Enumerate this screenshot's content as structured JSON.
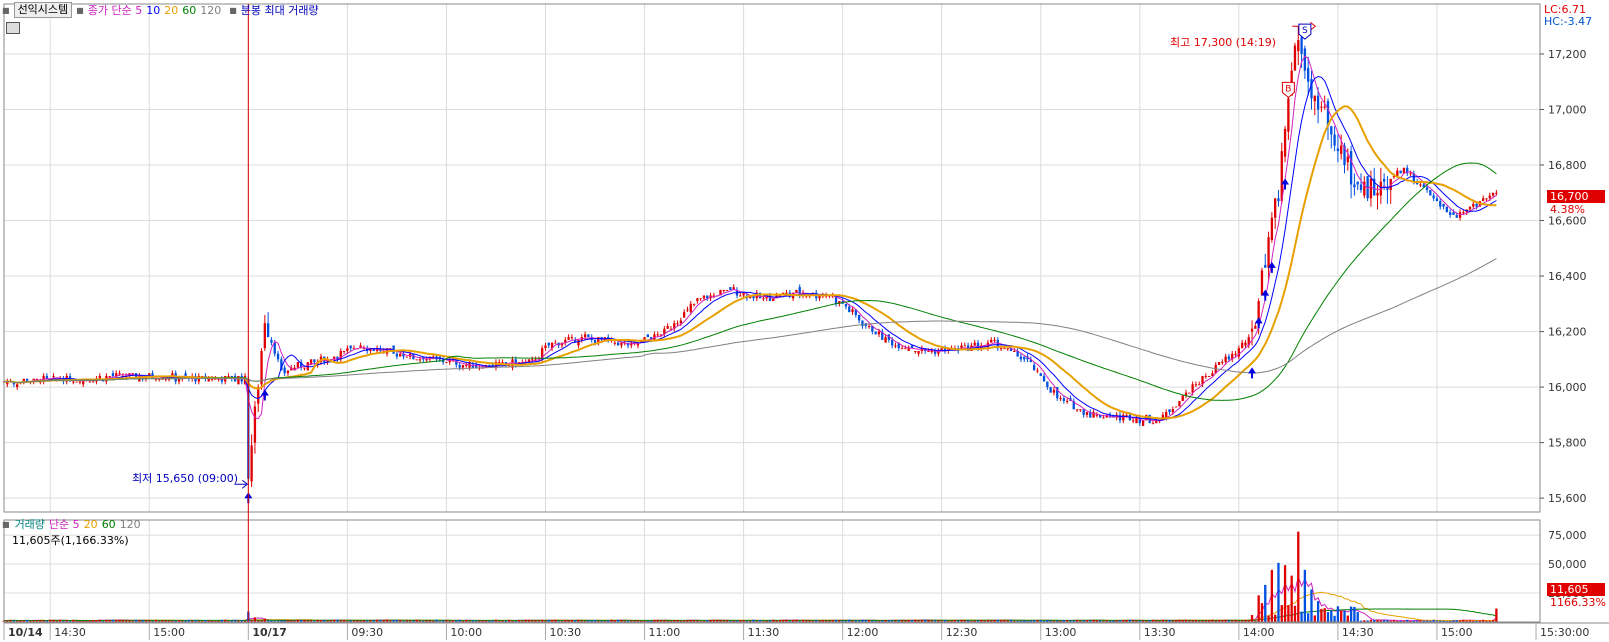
{
  "header": {
    "system_button": "선익시스템",
    "price_legend": [
      {
        "text": "종가 단순 5",
        "color": "#d020c0"
      },
      {
        "text": "10",
        "color": "#0000ff"
      },
      {
        "text": "20",
        "color": "#e8a000"
      },
      {
        "text": "60",
        "color": "#008000"
      },
      {
        "text": "120",
        "color": "#808080"
      }
    ],
    "overlay_label": "분봉 최대 거래량"
  },
  "corner": {
    "lc": "LC:6.71",
    "hc": "HC:-3.47"
  },
  "last_price": {
    "value": "16,700",
    "change": "4.38%"
  },
  "annotations": {
    "high": "최고 17,300 (14:19)",
    "low": "최저 15,650 (09:00)",
    "buy_marker": "B",
    "sell_marker": "S"
  },
  "volume_panel": {
    "legend": [
      {
        "text": "거래량",
        "color": "#008080"
      },
      {
        "text": "단순 5",
        "color": "#d020c0"
      },
      {
        "text": "20",
        "color": "#e8a000"
      },
      {
        "text": "60",
        "color": "#008000"
      },
      {
        "text": "120",
        "color": "#808080"
      }
    ],
    "current": "11,605주(1,166.33%)",
    "last_tag": "11,605",
    "last_pct": "1166.33%"
  },
  "chart_data": {
    "type": "candlestick",
    "price_axis": {
      "ticks": [
        "17,200",
        "17,000",
        "16,800",
        "16,600",
        "16,400",
        "16,200",
        "16,000",
        "15,800",
        "15,600"
      ],
      "values": [
        17200,
        17000,
        16800,
        16600,
        16400,
        16200,
        16000,
        15800,
        15600
      ],
      "range": [
        15550,
        17380
      ]
    },
    "volume_axis": {
      "ticks": [
        "75,000",
        "50,000",
        "25,000"
      ],
      "values": [
        75000,
        50000,
        25000
      ],
      "range": [
        0,
        88000
      ]
    },
    "time_labels": [
      {
        "text": "10/14",
        "t": 0
      },
      {
        "text": "14:30",
        "t": 14
      },
      {
        "text": "15:00",
        "t": 44
      },
      {
        "text": "10/17",
        "t": 74
      },
      {
        "text": "09:30",
        "t": 104
      },
      {
        "text": "10:00",
        "t": 134
      },
      {
        "text": "10:30",
        "t": 164
      },
      {
        "text": "11:00",
        "t": 194
      },
      {
        "text": "11:30",
        "t": 224
      },
      {
        "text": "12:00",
        "t": 254
      },
      {
        "text": "12:30",
        "t": 284
      },
      {
        "text": "13:00",
        "t": 314
      },
      {
        "text": "13:30",
        "t": 344
      },
      {
        "text": "14:00",
        "t": 374
      },
      {
        "text": "14:30",
        "t": 404
      },
      {
        "text": "15:00",
        "t": 434
      },
      {
        "text": "15:30:00",
        "t": 464
      }
    ],
    "close_anchors": [
      [
        0,
        16020
      ],
      [
        20,
        16030
      ],
      [
        40,
        16040
      ],
      [
        60,
        16030
      ],
      [
        73,
        16030
      ],
      [
        74,
        15700
      ],
      [
        76,
        15900
      ],
      [
        79,
        16250
      ],
      [
        84,
        16050
      ],
      [
        90,
        16080
      ],
      [
        98,
        16100
      ],
      [
        108,
        16150
      ],
      [
        118,
        16120
      ],
      [
        130,
        16100
      ],
      [
        140,
        16080
      ],
      [
        150,
        16080
      ],
      [
        160,
        16090
      ],
      [
        165,
        16150
      ],
      [
        175,
        16180
      ],
      [
        190,
        16150
      ],
      [
        200,
        16200
      ],
      [
        210,
        16310
      ],
      [
        220,
        16350
      ],
      [
        230,
        16320
      ],
      [
        240,
        16340
      ],
      [
        250,
        16330
      ],
      [
        255,
        16290
      ],
      [
        260,
        16230
      ],
      [
        270,
        16150
      ],
      [
        280,
        16130
      ],
      [
        290,
        16140
      ],
      [
        300,
        16160
      ],
      [
        310,
        16090
      ],
      [
        320,
        15950
      ],
      [
        330,
        15900
      ],
      [
        340,
        15890
      ],
      [
        350,
        15880
      ],
      [
        360,
        16000
      ],
      [
        370,
        16100
      ],
      [
        378,
        16180
      ],
      [
        382,
        16450
      ],
      [
        386,
        16700
      ],
      [
        389,
        17050
      ],
      [
        392,
        17250
      ],
      [
        395,
        17100
      ],
      [
        398,
        17000
      ],
      [
        401,
        16950
      ],
      [
        404,
        16880
      ],
      [
        408,
        16760
      ],
      [
        412,
        16700
      ],
      [
        416,
        16720
      ],
      [
        420,
        16760
      ],
      [
        424,
        16780
      ],
      [
        428,
        16740
      ],
      [
        432,
        16680
      ],
      [
        436,
        16640
      ],
      [
        440,
        16620
      ],
      [
        444,
        16650
      ],
      [
        448,
        16680
      ],
      [
        452,
        16700
      ]
    ],
    "volume_spikes": [
      [
        74,
        9000
      ],
      [
        76,
        4000
      ],
      [
        79,
        3000
      ],
      [
        378,
        6000
      ],
      [
        380,
        23000
      ],
      [
        382,
        32000
      ],
      [
        384,
        45000
      ],
      [
        386,
        51000
      ],
      [
        388,
        49000
      ],
      [
        390,
        40000
      ],
      [
        392,
        78000
      ],
      [
        394,
        45000
      ],
      [
        396,
        28000
      ],
      [
        398,
        18000
      ],
      [
        400,
        12000
      ],
      [
        402,
        10000
      ],
      [
        452,
        11605
      ]
    ]
  }
}
